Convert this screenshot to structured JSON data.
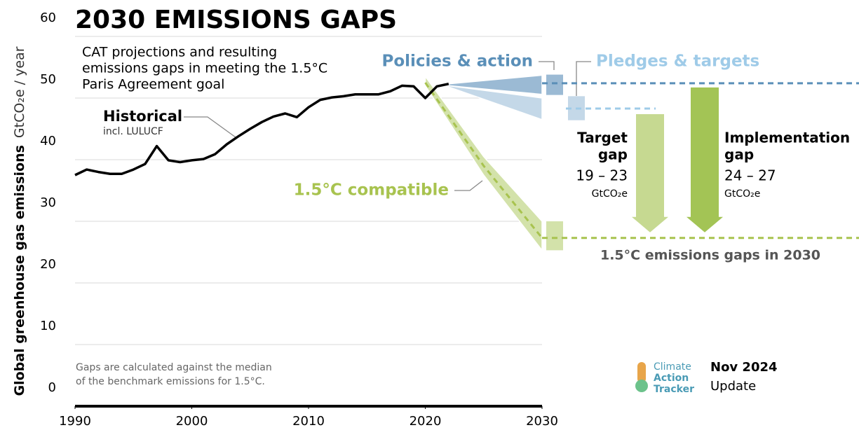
{
  "chart_data": {
    "type": "line",
    "title": "2030 EMISSIONS GAPS",
    "subtitle": [
      "CAT projections and resulting",
      "emissions gaps in meeting the 1.5°C",
      "Paris Agreement goal"
    ],
    "y_label": "Global greenhouse gas emissions",
    "y_unit": "GtCO₂e / year",
    "xlim": [
      1990,
      2030
    ],
    "xticks": [
      1990,
      2000,
      2010,
      2020,
      2030
    ],
    "ylim": [
      0,
      60
    ],
    "yticks": [
      0,
      10,
      20,
      30,
      40,
      50,
      60
    ],
    "grid": true,
    "historical": {
      "name": "Historical",
      "note": "incl. LULUCF",
      "color": "#000000",
      "x": [
        1990,
        1991,
        1992,
        1993,
        1994,
        1995,
        1996,
        1997,
        1998,
        1999,
        2000,
        2001,
        2002,
        2003,
        2004,
        2005,
        2006,
        2007,
        2008,
        2009,
        2010,
        2011,
        2012,
        2013,
        2014,
        2015,
        2016,
        2017,
        2018,
        2019,
        2020,
        2021,
        2022
      ],
      "values": [
        37.5,
        38.4,
        38.0,
        37.7,
        37.7,
        38.4,
        39.3,
        42.2,
        39.9,
        39.6,
        39.9,
        40.1,
        40.9,
        42.5,
        43.8,
        45.0,
        46.1,
        47.0,
        47.5,
        46.9,
        48.5,
        49.7,
        50.1,
        50.3,
        50.6,
        50.6,
        50.6,
        51.1,
        52.0,
        51.9,
        50.0,
        51.9,
        52.3
      ]
    },
    "projections": [
      {
        "name": "Policies & action",
        "color": "#5a8fb8",
        "fill": "#9bbad4",
        "x": [
          2022,
          2030
        ],
        "lower": [
          52.0,
          50.6
        ],
        "upper": [
          52.3,
          53.7
        ],
        "range_2030": [
          50.5,
          53.8
        ],
        "median_2030": 52.4
      },
      {
        "name": "Pledges & targets",
        "color": "#9fcbe8",
        "fill": "#c4d8e8",
        "x": [
          2022,
          2030
        ],
        "lower": [
          51.8,
          46.5
        ],
        "upper": [
          52.0,
          50.0
        ],
        "range_2030": [
          46.4,
          50.3
        ],
        "median_2030": 48.3
      },
      {
        "name": "1.5°C compatible",
        "color": "#a8c34f",
        "fill": "#d3e2aa",
        "x": [
          2020,
          2025,
          2030
        ],
        "lower": [
          52.0,
          37.5,
          25.3
        ],
        "upper": [
          53.5,
          40.5,
          30.0
        ],
        "median": [
          52.5,
          39.0,
          27.3
        ],
        "range_2030": [
          25.3,
          30.0
        ],
        "median_2030": 27.3
      }
    ],
    "gaps": [
      {
        "name": [
          "Target",
          "gap"
        ],
        "range": "19 – 23",
        "unit": "GtCO₂e",
        "color": "#c6d991"
      },
      {
        "name": [
          "Implementation",
          "gap"
        ],
        "range": "24 – 27",
        "unit": "GtCO₂e",
        "color": "#a3c455"
      }
    ],
    "gap_label": "1.5°C emissions gaps in 2030",
    "footnote": [
      "Gaps are calculated against the median",
      "of the benchmark emissions for 1.5°C."
    ],
    "logo": [
      "Climate",
      "Action",
      "Tracker"
    ],
    "edition": [
      "Nov 2024",
      "Update"
    ]
  }
}
